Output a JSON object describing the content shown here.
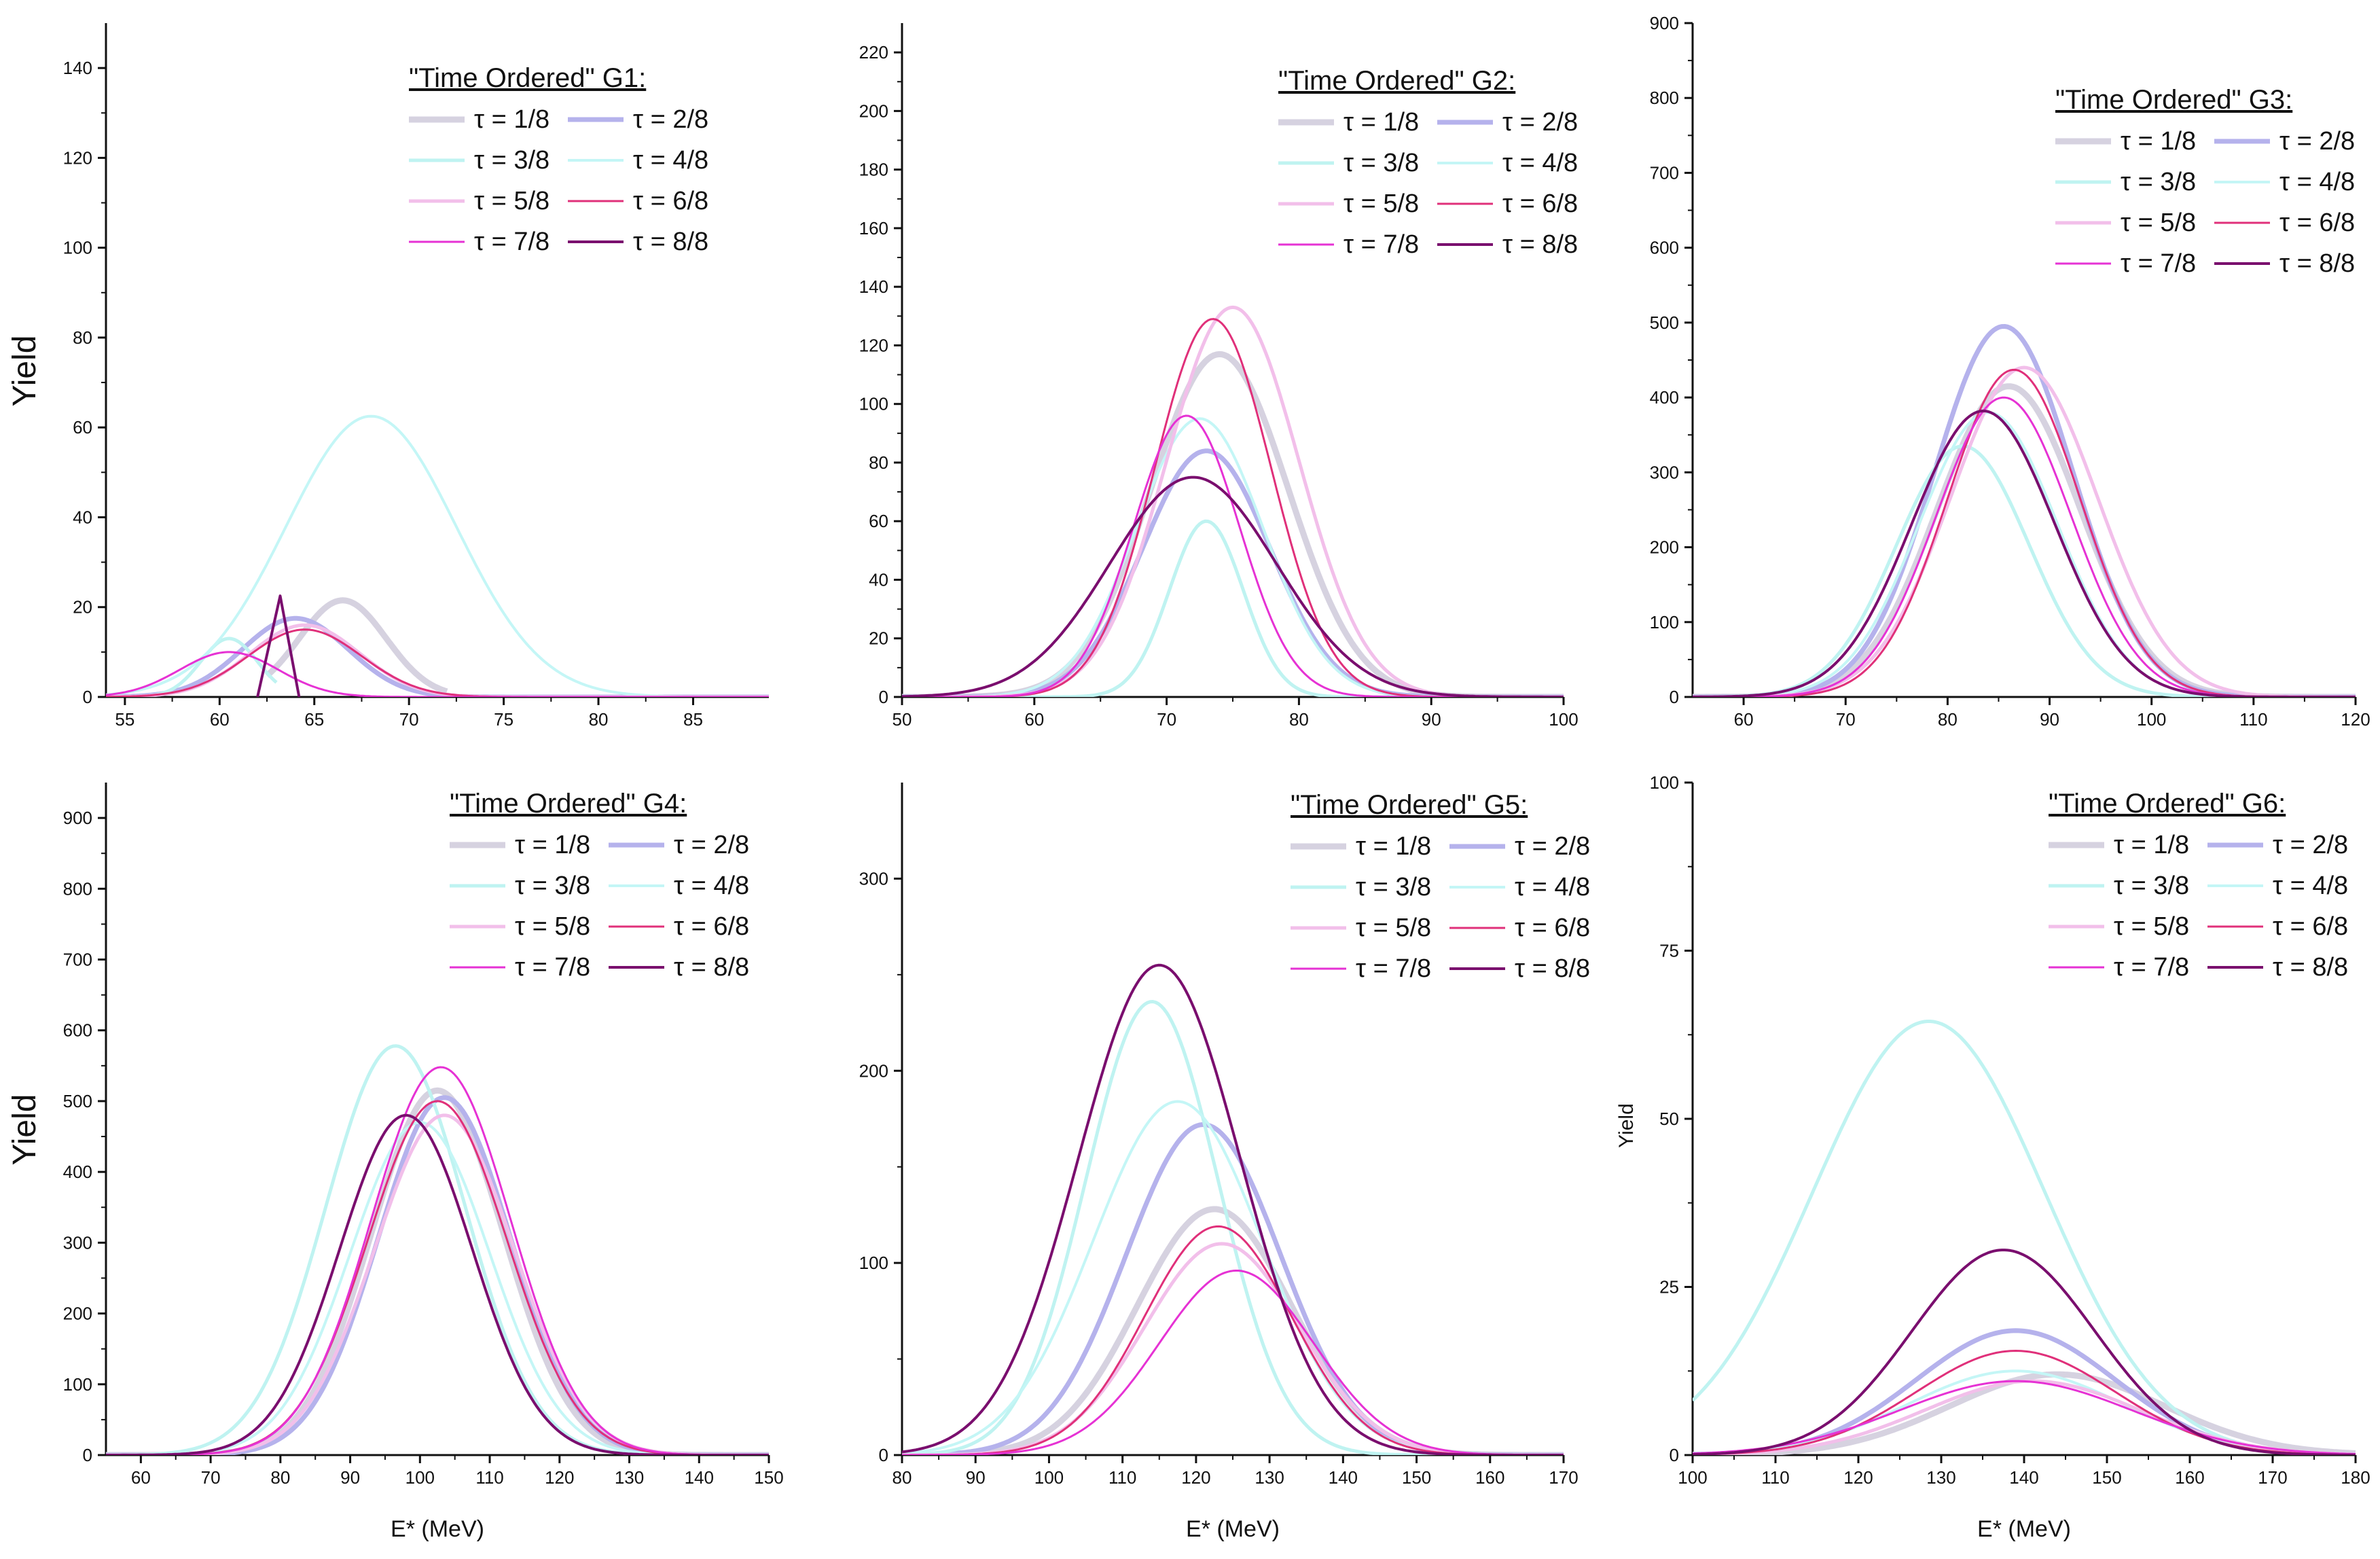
{
  "chart_data": [
    {
      "type": "line",
      "title": "\"Time Ordered\" G1:",
      "xlabel": "",
      "ylabel": "Yield",
      "xlim": [
        54,
        89
      ],
      "ylim": [
        0,
        150
      ],
      "xticks": [
        55,
        60,
        65,
        70,
        75,
        80,
        85
      ],
      "yticks": [
        0,
        20,
        40,
        60,
        80,
        100,
        120,
        140
      ],
      "series": [
        {
          "name": "τ = 1/8",
          "peak": 21.5,
          "center": 66.5,
          "sigma": 2.3,
          "cut": [
            62.5,
            72
          ]
        },
        {
          "name": "τ = 2/8",
          "peak": 17.5,
          "center": 64.0,
          "sigma": 2.8
        },
        {
          "name": "τ = 3/8",
          "peak": 13.0,
          "center": 60.5,
          "sigma": 1.5,
          "cut": [
            56,
            63
          ]
        },
        {
          "name": "τ = 4/8",
          "peak": 62.5,
          "center": 68.0,
          "sigma": 4.5
        },
        {
          "name": "τ = 5/8",
          "peak": 16.0,
          "center": 64.5,
          "sigma": 2.9
        },
        {
          "name": "τ = 6/8",
          "peak": 15.0,
          "center": 64.5,
          "sigma": 3.0
        },
        {
          "name": "τ = 7/8",
          "peak": 10.0,
          "center": 60.5,
          "sigma": 2.6
        },
        {
          "name": "τ = 8/8",
          "peak": 22.5,
          "center": 63.2,
          "sigma": 0.45,
          "triangle": [
            62.0,
            64.2
          ]
        }
      ]
    },
    {
      "type": "line",
      "title": "\"Time Ordered\" G2:",
      "xlabel": "",
      "ylabel": "",
      "xlim": [
        50,
        100
      ],
      "ylim": [
        0,
        230
      ],
      "xticks": [
        50,
        60,
        70,
        80,
        90,
        100
      ],
      "yticks": [
        0,
        20,
        40,
        60,
        80,
        100,
        120,
        140,
        160,
        180,
        200,
        220
      ],
      "series": [
        {
          "name": "τ = 1/8",
          "peak": 117,
          "center": 74.0,
          "sigma": 5.2
        },
        {
          "name": "τ = 2/8",
          "peak": 84,
          "center": 73.0,
          "sigma": 4.8
        },
        {
          "name": "τ = 3/8",
          "peak": 60,
          "center": 73.0,
          "sigma": 2.8
        },
        {
          "name": "τ = 4/8",
          "peak": 95,
          "center": 72.5,
          "sigma": 4.8
        },
        {
          "name": "τ = 5/8",
          "peak": 133,
          "center": 75.0,
          "sigma": 5.0
        },
        {
          "name": "τ = 6/8",
          "peak": 129,
          "center": 73.5,
          "sigma": 4.4
        },
        {
          "name": "τ = 7/8",
          "peak": 96,
          "center": 71.5,
          "sigma": 4.0
        },
        {
          "name": "τ = 8/8",
          "peak": 75,
          "center": 72.0,
          "sigma": 6.3
        }
      ]
    },
    {
      "type": "line",
      "title": "\"Time Ordered\" G3:",
      "xlabel": "",
      "ylabel": "",
      "xlim": [
        55,
        120
      ],
      "ylim": [
        0,
        900
      ],
      "xticks": [
        60,
        70,
        80,
        90,
        100,
        110,
        120
      ],
      "yticks": [
        0,
        100,
        200,
        300,
        400,
        500,
        600,
        700,
        800,
        900
      ],
      "series": [
        {
          "name": "τ = 1/8",
          "peak": 415,
          "center": 86.0,
          "sigma": 7.0
        },
        {
          "name": "τ = 2/8",
          "peak": 495,
          "center": 85.5,
          "sigma": 6.8
        },
        {
          "name": "τ = 3/8",
          "peak": 335,
          "center": 81.5,
          "sigma": 6.5
        },
        {
          "name": "τ = 4/8",
          "peak": 380,
          "center": 84.0,
          "sigma": 6.8
        },
        {
          "name": "τ = 5/8",
          "peak": 440,
          "center": 87.5,
          "sigma": 7.2
        },
        {
          "name": "τ = 6/8",
          "peak": 437,
          "center": 86.5,
          "sigma": 6.5
        },
        {
          "name": "τ = 7/8",
          "peak": 400,
          "center": 85.5,
          "sigma": 6.6
        },
        {
          "name": "τ = 8/8",
          "peak": 382,
          "center": 83.5,
          "sigma": 7.0
        }
      ]
    },
    {
      "type": "line",
      "title": "\"Time Ordered\" G4:",
      "xlabel": "E* (MeV)",
      "ylabel": "Yield",
      "xlim": [
        55,
        150
      ],
      "ylim": [
        0,
        950
      ],
      "xticks": [
        60,
        70,
        80,
        90,
        100,
        110,
        120,
        130,
        140,
        150
      ],
      "yticks": [
        0,
        100,
        200,
        300,
        400,
        500,
        600,
        700,
        800,
        900
      ],
      "series": [
        {
          "name": "τ = 1/8",
          "peak": 515,
          "center": 102.5,
          "sigma": 9.5
        },
        {
          "name": "τ = 2/8",
          "peak": 505,
          "center": 103.5,
          "sigma": 9.5
        },
        {
          "name": "τ = 3/8",
          "peak": 578,
          "center": 96.5,
          "sigma": 10.0
        },
        {
          "name": "τ = 4/8",
          "peak": 470,
          "center": 100.0,
          "sigma": 10.0
        },
        {
          "name": "τ = 5/8",
          "peak": 480,
          "center": 103.5,
          "sigma": 10.0
        },
        {
          "name": "τ = 6/8",
          "peak": 500,
          "center": 102.5,
          "sigma": 10.0
        },
        {
          "name": "τ = 7/8",
          "peak": 548,
          "center": 103.0,
          "sigma": 10.0
        },
        {
          "name": "τ = 8/8",
          "peak": 480,
          "center": 98.0,
          "sigma": 9.5
        }
      ]
    },
    {
      "type": "line",
      "title": "\"Time Ordered\" G5:",
      "xlabel": "E* (MeV)",
      "ylabel": "",
      "xlim": [
        80,
        170
      ],
      "ylim": [
        0,
        350
      ],
      "xticks": [
        80,
        90,
        100,
        110,
        120,
        130,
        140,
        150,
        160,
        170
      ],
      "yticks": [
        0,
        100,
        200,
        300
      ],
      "series": [
        {
          "name": "τ = 1/8",
          "peak": 128,
          "center": 122.5,
          "sigma": 10.5
        },
        {
          "name": "τ = 2/8",
          "peak": 172,
          "center": 121.0,
          "sigma": 10.5
        },
        {
          "name": "τ = 3/8",
          "peak": 236,
          "center": 114.0,
          "sigma": 9.0
        },
        {
          "name": "τ = 4/8",
          "peak": 184,
          "center": 117.5,
          "sigma": 11.5
        },
        {
          "name": "τ = 5/8",
          "peak": 110,
          "center": 123.5,
          "sigma": 10.5
        },
        {
          "name": "τ = 6/8",
          "peak": 119,
          "center": 123.0,
          "sigma": 10.0
        },
        {
          "name": "τ = 7/8",
          "peak": 96,
          "center": 125.5,
          "sigma": 10.5
        },
        {
          "name": "τ = 8/8",
          "peak": 255,
          "center": 115.0,
          "sigma": 11.0
        }
      ]
    },
    {
      "type": "line",
      "title": "\"Time Ordered\" G6:",
      "xlabel": "E* (MeV)",
      "ylabel": "Yield",
      "xlim": [
        100,
        180
      ],
      "ylim": [
        0,
        100
      ],
      "xticks": [
        100,
        110,
        120,
        130,
        140,
        150,
        160,
        170,
        180
      ],
      "yticks": [
        0,
        25,
        50,
        75,
        100
      ],
      "series": [
        {
          "name": "τ = 1/8",
          "peak": 12,
          "center": 144.0,
          "sigma": 13.0
        },
        {
          "name": "τ = 2/8",
          "peak": 18.5,
          "center": 139.0,
          "sigma": 12.0
        },
        {
          "name": "τ = 3/8",
          "peak": 64.5,
          "center": 128.5,
          "sigma": 14.0
        },
        {
          "name": "τ = 4/8",
          "peak": 12.5,
          "center": 139.0,
          "sigma": 13.0
        },
        {
          "name": "τ = 5/8",
          "peak": 11,
          "center": 141.0,
          "sigma": 13.0
        },
        {
          "name": "τ = 6/8",
          "peak": 15.5,
          "center": 139.0,
          "sigma": 12.0
        },
        {
          "name": "τ = 7/8",
          "peak": 11,
          "center": 139.0,
          "sigma": 14.0
        },
        {
          "name": "τ = 8/8",
          "peak": 30.5,
          "center": 137.5,
          "sigma": 11.0
        }
      ]
    }
  ],
  "series_styles": [
    {
      "color": "#d6d2e0",
      "width": 9
    },
    {
      "color": "#b5b2ec",
      "width": 7
    },
    {
      "color": "#bff3f1",
      "width": 5
    },
    {
      "color": "#c4f6f6",
      "width": 4
    },
    {
      "color": "#f2bfea",
      "width": 5
    },
    {
      "color": "#e0307a",
      "width": 3
    },
    {
      "color": "#e632d4",
      "width": 3
    },
    {
      "color": "#7a0e6e",
      "width": 4
    }
  ],
  "axis_color": "#111111"
}
